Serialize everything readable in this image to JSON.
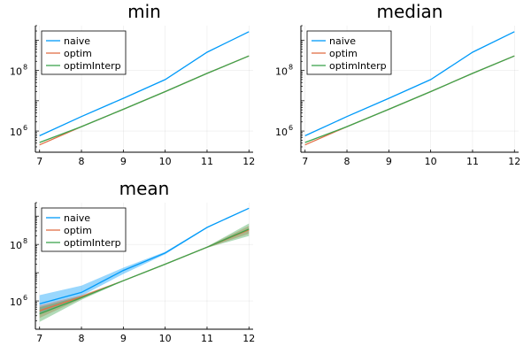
{
  "chart_data": [
    {
      "type": "line",
      "title": "min",
      "xlabel": "",
      "ylabel": "",
      "x": [
        7,
        8,
        9,
        10,
        11,
        12
      ],
      "xlim": [
        6.9,
        12.1
      ],
      "ylim": [
        200000,
        3000000000
      ],
      "yscale": "log10",
      "x_ticks": [
        "7",
        "8",
        "9",
        "10",
        "11",
        "12"
      ],
      "y_ticks": [
        {
          "base": "10",
          "exp": "6",
          "value": 1000000
        },
        {
          "base": "10",
          "exp": "8",
          "value": 100000000
        }
      ],
      "grid": true,
      "legend": "top-left",
      "series": [
        {
          "name": "naive",
          "color": "#009af9",
          "values": [
            700000,
            3000000,
            12000000,
            50000000,
            400000000,
            1900000000
          ]
        },
        {
          "name": "optim",
          "color": "#e26f46",
          "values": [
            350000,
            1400000,
            5200000,
            20000000,
            80000000,
            300000000
          ]
        },
        {
          "name": "optimInterp",
          "color": "#3da44d",
          "values": [
            420000,
            1400000,
            5200000,
            20000000,
            80000000,
            300000000
          ]
        }
      ]
    },
    {
      "type": "line",
      "title": "median",
      "xlabel": "",
      "ylabel": "",
      "x": [
        7,
        8,
        9,
        10,
        11,
        12
      ],
      "xlim": [
        6.9,
        12.1
      ],
      "ylim": [
        200000,
        3000000000
      ],
      "yscale": "log10",
      "x_ticks": [
        "7",
        "8",
        "9",
        "10",
        "11",
        "12"
      ],
      "y_ticks": [
        {
          "base": "10",
          "exp": "6",
          "value": 1000000
        },
        {
          "base": "10",
          "exp": "8",
          "value": 100000000
        }
      ],
      "grid": true,
      "legend": "top-left",
      "series": [
        {
          "name": "naive",
          "color": "#009af9",
          "values": [
            700000,
            3000000,
            12000000,
            50000000,
            400000000,
            1900000000
          ]
        },
        {
          "name": "optim",
          "color": "#e26f46",
          "values": [
            350000,
            1400000,
            5200000,
            20000000,
            80000000,
            300000000
          ]
        },
        {
          "name": "optimInterp",
          "color": "#3da44d",
          "values": [
            420000,
            1400000,
            5200000,
            20000000,
            80000000,
            300000000
          ]
        }
      ]
    },
    {
      "type": "line",
      "title": "mean",
      "xlabel": "",
      "ylabel": "",
      "x": [
        7,
        8,
        9,
        10,
        11,
        12
      ],
      "xlim": [
        6.9,
        12.1
      ],
      "ylim": [
        100000,
        3000000000
      ],
      "yscale": "log10",
      "x_ticks": [
        "7",
        "8",
        "9",
        "10",
        "11",
        "12"
      ],
      "y_ticks": [
        {
          "base": "10",
          "exp": "6",
          "value": 1000000
        },
        {
          "base": "10",
          "exp": "8",
          "value": 100000000
        }
      ],
      "grid": true,
      "legend": "top-left",
      "series": [
        {
          "name": "naive",
          "color": "#009af9",
          "values": [
            800000,
            2000000,
            12000000,
            50000000,
            400000000,
            1900000000
          ],
          "band_lower": [
            350000,
            1500000,
            9000000,
            45000000,
            380000000,
            1850000000
          ],
          "band_upper": [
            1600000,
            3500000,
            15000000,
            55000000,
            420000000,
            1950000000
          ]
        },
        {
          "name": "optim",
          "color": "#e26f46",
          "values": [
            450000,
            1400000,
            5200000,
            20000000,
            80000000,
            330000000
          ],
          "band_lower": [
            250000,
            1200000,
            5000000,
            19500000,
            76000000,
            240000000
          ],
          "band_upper": [
            700000,
            1600000,
            5400000,
            20500000,
            84000000,
            450000000
          ]
        },
        {
          "name": "optimInterp",
          "color": "#3da44d",
          "values": [
            350000,
            1300000,
            5200000,
            20000000,
            80000000,
            350000000
          ],
          "band_lower": [
            180000,
            1100000,
            5000000,
            19500000,
            76000000,
            200000000
          ],
          "band_upper": [
            600000,
            1500000,
            5400000,
            20500000,
            84000000,
            550000000
          ]
        }
      ]
    }
  ]
}
